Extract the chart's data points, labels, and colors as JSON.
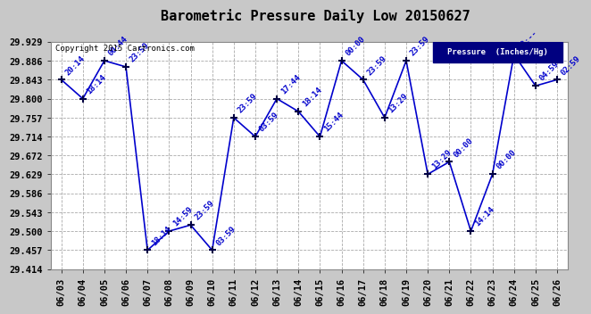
{
  "title": "Barometric Pressure Daily Low 20150627",
  "copyright": "Copyright 2015 Cartronics.com",
  "legend_label": "Pressure  (Inches/Hg)",
  "background_color": "#c8c8c8",
  "plot_background_color": "#ffffff",
  "grid_color": "#aaaaaa",
  "line_color": "#0000cc",
  "marker_color": "#000044",
  "text_color": "#0000cc",
  "dates": [
    "06/03",
    "06/04",
    "06/05",
    "06/06",
    "06/07",
    "06/08",
    "06/09",
    "06/10",
    "06/11",
    "06/12",
    "06/13",
    "06/14",
    "06/15",
    "06/16",
    "06/17",
    "06/18",
    "06/19",
    "06/20",
    "06/21",
    "06/22",
    "06/23",
    "06/24",
    "06/25",
    "06/26"
  ],
  "values": [
    29.843,
    29.8,
    29.886,
    29.872,
    29.457,
    29.5,
    29.514,
    29.457,
    29.757,
    29.714,
    29.8,
    29.771,
    29.714,
    29.886,
    29.843,
    29.757,
    29.886,
    29.629,
    29.657,
    29.5,
    29.629,
    29.9,
    29.829,
    29.843
  ],
  "annotations": [
    "20:14",
    "18:14",
    "00:44",
    "23:59",
    "18:14",
    "14:59",
    "23:59",
    "03:59",
    "23:59",
    "03:59",
    "17:44",
    "18:14",
    "15:44",
    "00:00",
    "23:59",
    "13:29",
    "23:59",
    "13:29",
    "00:00",
    "14:14",
    "00:00",
    "20:--",
    "04:59",
    "02:59"
  ],
  "ylim_min": 29.414,
  "ylim_max": 29.929,
  "yticks": [
    29.414,
    29.457,
    29.5,
    29.543,
    29.586,
    29.629,
    29.672,
    29.714,
    29.757,
    29.8,
    29.843,
    29.886,
    29.929
  ]
}
